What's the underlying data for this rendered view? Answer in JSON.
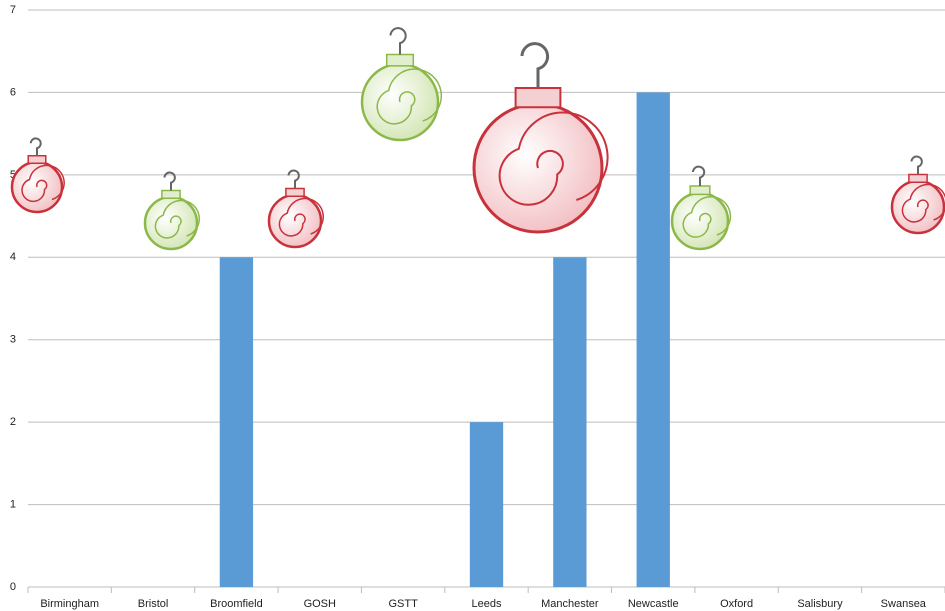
{
  "chart_data": {
    "type": "bar",
    "categories": [
      "Birmingham",
      "Bristol",
      "Broomfield",
      "GOSH",
      "GSTT",
      "Leeds",
      "Manchester",
      "Newcastle",
      "Oxford",
      "Salisbury",
      "Swansea"
    ],
    "values": [
      0,
      0,
      4,
      0,
      0,
      2,
      4,
      6,
      0,
      0,
      0
    ],
    "color": "#5b9bd5",
    "ylim": [
      0,
      7
    ],
    "yticks": [
      0,
      1,
      2,
      3,
      4,
      5,
      6,
      7
    ],
    "grid": true
  }
}
